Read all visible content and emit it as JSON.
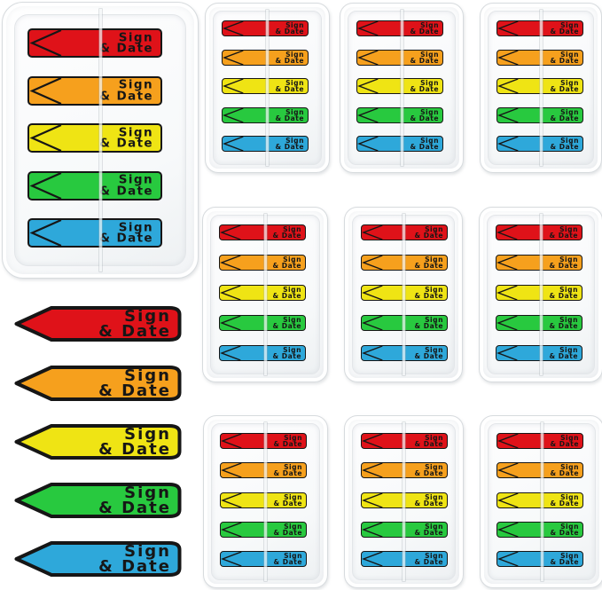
{
  "background": "#FFFFFF",
  "ink_color": "#161616",
  "label": {
    "line1": "Sign",
    "line2": "& Date"
  },
  "flags": [
    {
      "name": "red",
      "color": "#DF1219"
    },
    {
      "name": "orange",
      "color": "#F6A01D"
    },
    {
      "name": "yellow",
      "color": "#EFE414"
    },
    {
      "name": "green",
      "color": "#28C93F"
    },
    {
      "name": "blue",
      "color": "#2EA8DA"
    }
  ],
  "counts": {
    "large_dispensers": 1,
    "small_dispensers": 9,
    "flags_per_dispenser": 5,
    "loose_flags": 5
  }
}
